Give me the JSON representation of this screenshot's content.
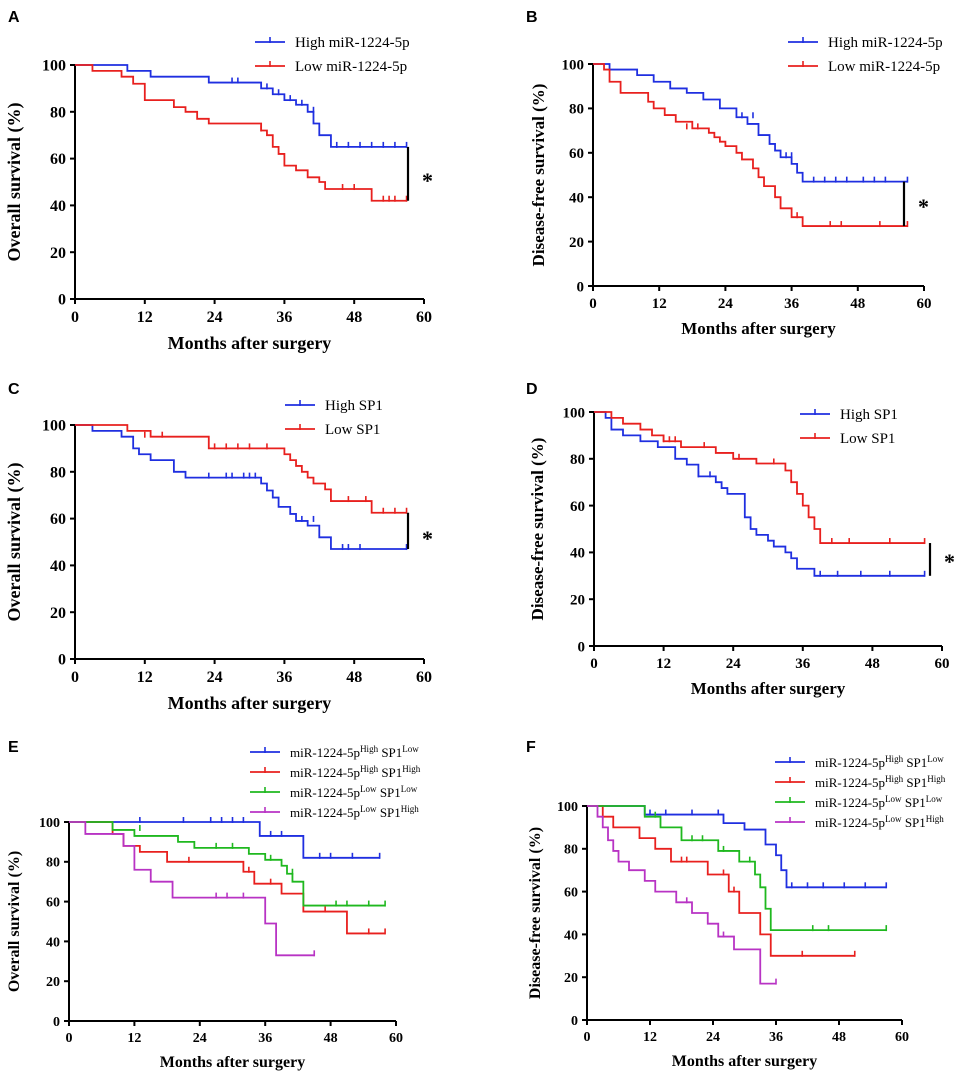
{
  "chart_data": [
    {
      "panel": "A",
      "type": "line",
      "subtype": "kaplan-meier",
      "title": "",
      "xlabel": "Months after surgery",
      "ylabel": "Overall survival (%)",
      "xlim": [
        0,
        60
      ],
      "ylim": [
        0,
        100
      ],
      "xticks": [
        "0",
        "12",
        "24",
        "36",
        "48",
        "60"
      ],
      "yticks": [
        "0",
        "20",
        "40",
        "60",
        "80",
        "100"
      ],
      "legend_position": "top-right",
      "significance": "*",
      "series": [
        {
          "name": "High miR-1224-5p",
          "color": "#1f2fe0",
          "x": [
            0,
            9,
            13,
            23,
            32,
            34,
            36,
            38,
            40,
            41,
            42,
            44,
            57
          ],
          "y": [
            100,
            97.5,
            95,
            92.5,
            90,
            87.5,
            85,
            83,
            80,
            75,
            70,
            65,
            65
          ],
          "censor_x": [
            27,
            28,
            33,
            35,
            37,
            39,
            41,
            45,
            47,
            49,
            51,
            53,
            55,
            57
          ],
          "censor_y": [
            92.5,
            92.5,
            90,
            87.5,
            85,
            83,
            80,
            65,
            65,
            65,
            65,
            65,
            65,
            65
          ]
        },
        {
          "name": "Low miR-1224-5p",
          "color": "#e8201e",
          "x": [
            0,
            3,
            8,
            10,
            12,
            17,
            19,
            21,
            23,
            32,
            33,
            34,
            35,
            36,
            38,
            40,
            42,
            43,
            51,
            57
          ],
          "y": [
            100,
            97.5,
            95,
            92,
            85,
            82,
            80,
            77,
            75,
            72,
            70,
            65,
            62,
            57,
            55,
            52,
            50,
            47,
            42,
            42
          ],
          "censor_x": [
            32,
            46,
            48,
            53,
            54,
            55,
            57
          ],
          "censor_y": [
            72,
            47,
            47,
            42,
            42,
            42,
            42
          ]
        }
      ]
    },
    {
      "panel": "B",
      "type": "line",
      "subtype": "kaplan-meier",
      "title": "",
      "xlabel": "Months after surgery",
      "ylabel": "Disease-free survival (%)",
      "xlim": [
        0,
        60
      ],
      "ylim": [
        0,
        100
      ],
      "xticks": [
        "0",
        "12",
        "24",
        "36",
        "48",
        "60"
      ],
      "yticks": [
        "0",
        "20",
        "40",
        "60",
        "80",
        "100"
      ],
      "legend_position": "top-right",
      "significance": "*",
      "series": [
        {
          "name": "High miR-1224-5p",
          "color": "#1f2fe0",
          "x": [
            0,
            3,
            8,
            11,
            14,
            17,
            20,
            23,
            26,
            28,
            30,
            32,
            33,
            34,
            36,
            37,
            38,
            57
          ],
          "y": [
            100,
            97.5,
            95,
            92,
            89,
            87,
            84,
            80,
            76,
            73,
            68,
            64,
            61,
            58,
            55,
            51,
            47,
            47
          ],
          "censor_x": [
            27,
            29,
            35,
            36,
            40,
            42,
            44,
            46,
            49,
            51,
            53,
            57
          ],
          "censor_y": [
            76,
            76,
            58,
            58,
            47,
            47,
            47,
            47,
            47,
            47,
            47,
            47
          ]
        },
        {
          "name": "Low miR-1224-5p",
          "color": "#e8201e",
          "x": [
            0,
            2,
            3,
            5,
            10,
            11,
            13,
            15,
            18,
            21,
            22,
            23,
            24,
            26,
            27,
            29,
            30,
            31,
            33,
            34,
            36,
            38,
            57
          ],
          "y": [
            100,
            97.5,
            92,
            87,
            83,
            80,
            77,
            74,
            71,
            69,
            67,
            65,
            63,
            60,
            57,
            53,
            49,
            45,
            40,
            35,
            31,
            27,
            27
          ],
          "censor_x": [
            17,
            19,
            37,
            43,
            45,
            52,
            57
          ],
          "censor_y": [
            71,
            71,
            31,
            27,
            27,
            27,
            27
          ]
        }
      ]
    },
    {
      "panel": "C",
      "type": "line",
      "subtype": "kaplan-meier",
      "title": "",
      "xlabel": "Months after surgery",
      "ylabel": "Overall survival (%)",
      "xlim": [
        0,
        60
      ],
      "ylim": [
        0,
        100
      ],
      "xticks": [
        "0",
        "12",
        "24",
        "36",
        "48",
        "60"
      ],
      "yticks": [
        "0",
        "20",
        "40",
        "60",
        "80",
        "100"
      ],
      "legend_position": "top-right",
      "significance": "*",
      "series": [
        {
          "name": "High SP1",
          "color": "#1f2fe0",
          "x": [
            0,
            3,
            8,
            10,
            11,
            13,
            17,
            19,
            32,
            33,
            34,
            35,
            37,
            38,
            40,
            42,
            44,
            57
          ],
          "y": [
            100,
            97.5,
            95,
            90,
            87.5,
            85,
            80,
            77.5,
            75,
            72,
            69,
            65,
            62,
            59,
            57,
            52,
            47,
            47
          ],
          "censor_x": [
            23,
            26,
            27,
            29,
            30,
            31,
            39,
            41,
            46,
            47,
            49,
            57
          ],
          "censor_y": [
            77.5,
            77.5,
            77.5,
            77.5,
            77.5,
            77.5,
            59,
            59,
            47,
            47,
            47,
            47
          ]
        },
        {
          "name": "Low SP1",
          "color": "#e8201e",
          "x": [
            0,
            9,
            13,
            23,
            36,
            37,
            38,
            39,
            40,
            41,
            43,
            44,
            51,
            57
          ],
          "y": [
            100,
            97.5,
            95,
            90,
            87.5,
            85,
            82.5,
            80,
            77.5,
            75,
            72.5,
            67.5,
            62.5,
            62.5
          ],
          "censor_x": [
            12,
            15,
            24,
            26,
            28,
            30,
            33,
            47,
            50,
            53,
            55,
            57
          ],
          "censor_y": [
            95,
            95,
            90,
            90,
            90,
            90,
            90,
            67.5,
            67.5,
            62.5,
            62.5,
            62.5
          ]
        }
      ]
    },
    {
      "panel": "D",
      "type": "line",
      "subtype": "kaplan-meier",
      "title": "",
      "xlabel": "Months after surgery",
      "ylabel": "Disease-free survival (%)",
      "xlim": [
        0,
        60
      ],
      "ylim": [
        0,
        100
      ],
      "xticks": [
        "0",
        "12",
        "24",
        "36",
        "48",
        "60"
      ],
      "yticks": [
        "0",
        "20",
        "40",
        "60",
        "80",
        "100"
      ],
      "legend_position": "top-right",
      "significance": "*",
      "series": [
        {
          "name": "High SP1",
          "color": "#1f2fe0",
          "x": [
            0,
            2,
            3,
            5,
            8,
            11,
            14,
            16,
            18,
            21,
            22,
            23,
            26,
            27,
            28,
            30,
            31,
            33,
            34,
            35,
            38,
            57
          ],
          "y": [
            100,
            97.5,
            92.5,
            90,
            87.5,
            85,
            80,
            77.5,
            72.5,
            70,
            67.5,
            65,
            55,
            50,
            47.5,
            45,
            42.5,
            40,
            37.5,
            33,
            30,
            30
          ],
          "censor_x": [
            18,
            20,
            39,
            42,
            46,
            51,
            57
          ],
          "censor_y": [
            72.5,
            72.5,
            30,
            30,
            30,
            30,
            30
          ]
        },
        {
          "name": "Low SP1",
          "color": "#e8201e",
          "x": [
            0,
            3,
            5,
            8,
            10,
            12,
            15,
            21,
            24,
            28,
            33,
            34,
            35,
            36,
            37,
            38,
            39,
            57
          ],
          "y": [
            100,
            97.5,
            95,
            92.5,
            90,
            87.5,
            85,
            82.5,
            80,
            78,
            75,
            70,
            65,
            60,
            55,
            50,
            44,
            44
          ],
          "censor_x": [
            12,
            13,
            14,
            19,
            25,
            31,
            41,
            44,
            51,
            57
          ],
          "censor_y": [
            87.5,
            87.5,
            87.5,
            85,
            80,
            78,
            44,
            44,
            44,
            44
          ]
        }
      ]
    },
    {
      "panel": "E",
      "type": "line",
      "subtype": "kaplan-meier",
      "title": "",
      "xlabel": "Months after surgery",
      "ylabel": "Overall survival (%)",
      "xlim": [
        0,
        60
      ],
      "ylim": [
        0,
        100
      ],
      "xticks": [
        "0",
        "12",
        "24",
        "36",
        "48",
        "60"
      ],
      "yticks": [
        "0",
        "20",
        "40",
        "60",
        "80",
        "100"
      ],
      "legend_position": "top-right",
      "series": [
        {
          "name": "miR-1224-5p",
          "name_sup1": "High",
          "name_mid": " SP1",
          "name_sup2": "Low",
          "color": "#1f2fe0",
          "x": [
            0,
            35,
            43,
            57
          ],
          "y": [
            100,
            93,
            82,
            82
          ],
          "censor_x": [
            13,
            21,
            26,
            28,
            30,
            32,
            37,
            39,
            46,
            48,
            52,
            57
          ],
          "censor_y": [
            100,
            100,
            100,
            100,
            100,
            100,
            93,
            93,
            82,
            82,
            82,
            82
          ]
        },
        {
          "name": "miR-1224-5p",
          "name_sup1": "High",
          "name_mid": " SP1",
          "name_sup2": "High",
          "color": "#e8201e",
          "x": [
            0,
            8,
            10,
            13,
            18,
            32,
            34,
            39,
            43,
            51,
            58
          ],
          "y": [
            100,
            94,
            88,
            85,
            80,
            75,
            69,
            64,
            55,
            44,
            44
          ],
          "censor_x": [
            22,
            33,
            37,
            47,
            55,
            58
          ],
          "censor_y": [
            80,
            75,
            69,
            55,
            44,
            44
          ]
        },
        {
          "name": "miR-1224-5p",
          "name_sup1": "Low",
          "name_mid": " SP1",
          "name_sup2": "Low",
          "color": "#1fb81f",
          "x": [
            0,
            8,
            12,
            20,
            23,
            33,
            36,
            39,
            40,
            41,
            43,
            58
          ],
          "y": [
            100,
            96,
            93,
            90,
            87,
            84,
            81,
            78,
            74,
            70,
            58,
            58
          ],
          "censor_x": [
            13,
            27,
            30,
            37,
            41,
            49,
            51,
            55,
            58
          ],
          "censor_y": [
            96,
            87,
            87,
            81,
            74,
            58,
            58,
            58,
            58
          ]
        },
        {
          "name": "miR-1224-5p",
          "name_sup1": "Low",
          "name_mid": " SP1",
          "name_sup2": "High",
          "color": "#b833c4",
          "x": [
            0,
            3,
            10,
            12,
            15,
            19,
            36,
            38,
            45
          ],
          "y": [
            100,
            94,
            88,
            76,
            70,
            62,
            49,
            33,
            33
          ],
          "censor_x": [
            27,
            29,
            32,
            45
          ],
          "censor_y": [
            62,
            62,
            62,
            33
          ]
        }
      ]
    },
    {
      "panel": "F",
      "type": "line",
      "subtype": "kaplan-meier",
      "title": "",
      "xlabel": "Months after surgery",
      "ylabel": "Disease-free survival (%)",
      "xlim": [
        0,
        60
      ],
      "ylim": [
        0,
        100
      ],
      "xticks": [
        "0",
        "12",
        "24",
        "36",
        "48",
        "60"
      ],
      "yticks": [
        "0",
        "20",
        "40",
        "60",
        "80",
        "100"
      ],
      "legend_position": "top-right",
      "series": [
        {
          "name": "miR-1224-5p",
          "name_sup1": "High",
          "name_mid": " SP1",
          "name_sup2": "Low",
          "color": "#1f2fe0",
          "x": [
            0,
            11,
            26,
            30,
            34,
            36,
            37,
            38,
            57
          ],
          "y": [
            100,
            96,
            92,
            89,
            82,
            77,
            70,
            62,
            62
          ],
          "censor_x": [
            12,
            15,
            20,
            25,
            39,
            42,
            45,
            49,
            53,
            57
          ],
          "censor_y": [
            96,
            96,
            96,
            96,
            62,
            62,
            62,
            62,
            62,
            62
          ]
        },
        {
          "name": "miR-1224-5p",
          "name_sup1": "High",
          "name_mid": " SP1",
          "name_sup2": "High",
          "color": "#e8201e",
          "x": [
            0,
            3,
            5,
            10,
            13,
            16,
            23,
            27,
            29,
            33,
            35,
            37,
            51
          ],
          "y": [
            100,
            95,
            90,
            85,
            80,
            74,
            68,
            60,
            50,
            40,
            30,
            30,
            30
          ],
          "censor_x": [
            18,
            19,
            26,
            28,
            41,
            51
          ],
          "censor_y": [
            74,
            74,
            68,
            60,
            30,
            30
          ]
        },
        {
          "name": "miR-1224-5p",
          "name_sup1": "Low",
          "name_mid": " SP1",
          "name_sup2": "Low",
          "color": "#1fb81f",
          "x": [
            0,
            11,
            14,
            18,
            25,
            29,
            32,
            33,
            34,
            35,
            57
          ],
          "y": [
            100,
            95,
            90,
            84,
            79,
            74,
            68,
            62,
            52,
            42,
            42
          ],
          "censor_x": [
            13,
            20,
            22,
            26,
            31,
            43,
            46,
            57
          ],
          "censor_y": [
            95,
            84,
            84,
            79,
            74,
            42,
            42,
            42
          ]
        },
        {
          "name": "miR-1224-5p",
          "name_sup1": "Low",
          "name_mid": " SP1",
          "name_sup2": "High",
          "color": "#b833c4",
          "x": [
            0,
            2,
            3,
            4,
            5,
            6,
            8,
            11,
            13,
            17,
            20,
            23,
            25,
            28,
            33,
            36
          ],
          "y": [
            100,
            95,
            90,
            84,
            79,
            74,
            70,
            65,
            60,
            55,
            50,
            45,
            39,
            33,
            17,
            17
          ],
          "censor_x": [
            19,
            26,
            36
          ],
          "censor_y": [
            55,
            39,
            17
          ]
        }
      ]
    }
  ]
}
